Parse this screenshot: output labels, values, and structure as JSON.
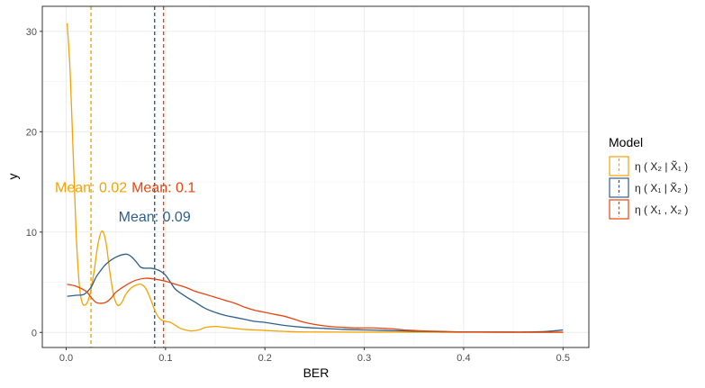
{
  "chart_data": {
    "type": "line",
    "title": "",
    "xlabel": "BER",
    "ylabel": "y",
    "xlim": [
      -0.024,
      0.526
    ],
    "ylim": [
      -1.5,
      32.5
    ],
    "x_ticks": [
      0.0,
      0.1,
      0.2,
      0.3,
      0.4,
      0.5
    ],
    "x_tick_labels": [
      "0.0",
      "0.1",
      "0.2",
      "0.3",
      "0.4",
      "0.5"
    ],
    "y_ticks": [
      0,
      10,
      20,
      30
    ],
    "y_tick_labels": [
      "0",
      "10",
      "20",
      "30"
    ],
    "grid": true,
    "legend": {
      "title": "Model",
      "placement": "right",
      "entries": [
        {
          "label": "η ( X₂ | X̃₁ )",
          "color": "#F5A300"
        },
        {
          "label": "η ( X₁ | X̃₂ )",
          "color": "#2E5F8A"
        },
        {
          "label": "η ( X₁ , X₂ )",
          "color": "#E8450E"
        }
      ]
    },
    "series": [
      {
        "name": "η ( X₂ | X̃₁ )",
        "color": "#F5A300",
        "mean": 0.025,
        "mean_label": "Mean: 0.02",
        "points": [
          [
            0.001,
            30.8
          ],
          [
            0.004,
            26.0
          ],
          [
            0.007,
            18.0
          ],
          [
            0.01,
            10.0
          ],
          [
            0.013,
            5.0
          ],
          [
            0.016,
            3.0
          ],
          [
            0.02,
            2.8
          ],
          [
            0.024,
            3.8
          ],
          [
            0.028,
            6.0
          ],
          [
            0.032,
            8.8
          ],
          [
            0.036,
            10.1
          ],
          [
            0.04,
            9.0
          ],
          [
            0.044,
            6.0
          ],
          [
            0.048,
            3.6
          ],
          [
            0.052,
            2.7
          ],
          [
            0.056,
            3.0
          ],
          [
            0.06,
            3.8
          ],
          [
            0.065,
            4.4
          ],
          [
            0.07,
            4.7
          ],
          [
            0.075,
            4.8
          ],
          [
            0.08,
            4.4
          ],
          [
            0.085,
            3.3
          ],
          [
            0.09,
            2.0
          ],
          [
            0.095,
            1.3
          ],
          [
            0.1,
            1.1
          ],
          [
            0.105,
            1.0
          ],
          [
            0.11,
            0.7
          ],
          [
            0.115,
            0.4
          ],
          [
            0.12,
            0.25
          ],
          [
            0.125,
            0.15
          ],
          [
            0.13,
            0.18
          ],
          [
            0.135,
            0.3
          ],
          [
            0.14,
            0.5
          ],
          [
            0.15,
            0.6
          ],
          [
            0.16,
            0.5
          ],
          [
            0.17,
            0.4
          ],
          [
            0.18,
            0.3
          ],
          [
            0.19,
            0.25
          ],
          [
            0.2,
            0.2
          ],
          [
            0.22,
            0.1
          ],
          [
            0.24,
            0.05
          ],
          [
            0.3,
            0.03
          ],
          [
            0.4,
            0.02
          ],
          [
            0.5,
            0.02
          ]
        ]
      },
      {
        "name": "η ( X₁ | X̃₂ )",
        "color": "#2E5F8A",
        "mean": 0.089,
        "mean_label": "Mean: 0.09",
        "points": [
          [
            0.001,
            3.6
          ],
          [
            0.01,
            3.7
          ],
          [
            0.018,
            3.8
          ],
          [
            0.025,
            4.5
          ],
          [
            0.03,
            5.5
          ],
          [
            0.035,
            6.2
          ],
          [
            0.04,
            6.8
          ],
          [
            0.05,
            7.5
          ],
          [
            0.06,
            7.8
          ],
          [
            0.065,
            7.6
          ],
          [
            0.07,
            7.1
          ],
          [
            0.075,
            6.5
          ],
          [
            0.08,
            6.4
          ],
          [
            0.085,
            6.4
          ],
          [
            0.09,
            6.3
          ],
          [
            0.095,
            6.1
          ],
          [
            0.1,
            5.7
          ],
          [
            0.105,
            5.0
          ],
          [
            0.11,
            4.3
          ],
          [
            0.12,
            3.6
          ],
          [
            0.13,
            3.0
          ],
          [
            0.14,
            2.4
          ],
          [
            0.15,
            2.0
          ],
          [
            0.16,
            1.7
          ],
          [
            0.17,
            1.5
          ],
          [
            0.18,
            1.3
          ],
          [
            0.19,
            1.1
          ],
          [
            0.2,
            1.0
          ],
          [
            0.22,
            0.7
          ],
          [
            0.24,
            0.5
          ],
          [
            0.26,
            0.4
          ],
          [
            0.28,
            0.3
          ],
          [
            0.3,
            0.25
          ],
          [
            0.32,
            0.2
          ],
          [
            0.34,
            0.15
          ],
          [
            0.36,
            0.1
          ],
          [
            0.38,
            0.07
          ],
          [
            0.4,
            0.05
          ],
          [
            0.42,
            0.05
          ],
          [
            0.44,
            0.05
          ],
          [
            0.46,
            0.04
          ],
          [
            0.48,
            0.08
          ],
          [
            0.49,
            0.15
          ],
          [
            0.5,
            0.25
          ]
        ]
      },
      {
        "name": "η ( X₁ , X₂ )",
        "color": "#E8450E",
        "mean": 0.098,
        "mean_label": "Mean: 0.1",
        "points": [
          [
            0.001,
            4.8
          ],
          [
            0.01,
            4.6
          ],
          [
            0.02,
            4.1
          ],
          [
            0.025,
            3.5
          ],
          [
            0.03,
            3.0
          ],
          [
            0.035,
            2.9
          ],
          [
            0.04,
            3.0
          ],
          [
            0.045,
            3.4
          ],
          [
            0.05,
            4.0
          ],
          [
            0.06,
            4.7
          ],
          [
            0.07,
            5.2
          ],
          [
            0.08,
            5.4
          ],
          [
            0.09,
            5.3
          ],
          [
            0.1,
            5.1
          ],
          [
            0.11,
            4.8
          ],
          [
            0.12,
            4.5
          ],
          [
            0.13,
            4.1
          ],
          [
            0.14,
            3.8
          ],
          [
            0.15,
            3.5
          ],
          [
            0.16,
            3.2
          ],
          [
            0.17,
            2.9
          ],
          [
            0.18,
            2.5
          ],
          [
            0.19,
            2.2
          ],
          [
            0.2,
            2.0
          ],
          [
            0.21,
            1.8
          ],
          [
            0.22,
            1.6
          ],
          [
            0.23,
            1.3
          ],
          [
            0.24,
            1.0
          ],
          [
            0.25,
            0.8
          ],
          [
            0.26,
            0.65
          ],
          [
            0.27,
            0.55
          ],
          [
            0.28,
            0.5
          ],
          [
            0.29,
            0.45
          ],
          [
            0.3,
            0.45
          ],
          [
            0.31,
            0.45
          ],
          [
            0.32,
            0.4
          ],
          [
            0.33,
            0.35
          ],
          [
            0.34,
            0.25
          ],
          [
            0.35,
            0.2
          ],
          [
            0.36,
            0.15
          ],
          [
            0.38,
            0.1
          ],
          [
            0.4,
            0.05
          ],
          [
            0.44,
            0.02
          ],
          [
            0.5,
            0.02
          ]
        ]
      }
    ]
  }
}
